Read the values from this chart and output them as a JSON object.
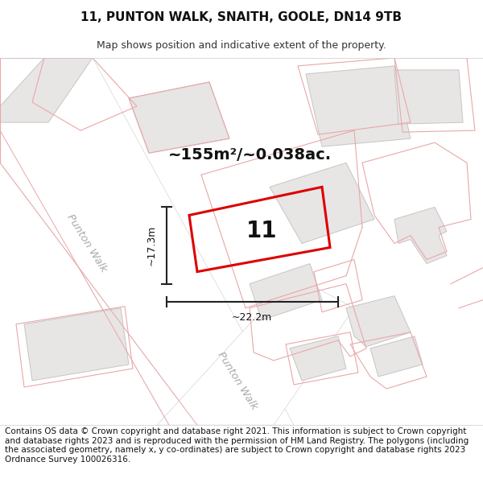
{
  "title": "11, PUNTON WALK, SNAITH, GOOLE, DN14 9TB",
  "subtitle": "Map shows position and indicative extent of the property.",
  "footer": "Contains OS data © Crown copyright and database right 2021. This information is subject to Crown copyright and database rights 2023 and is reproduced with the permission of HM Land Registry. The polygons (including the associated geometry, namely x, y co-ordinates) are subject to Crown copyright and database rights 2023 Ordnance Survey 100026316.",
  "area_label": "~155m²/~0.038ac.",
  "number_label": "11",
  "dim_h": "~17.3m",
  "dim_w": "~22.2m",
  "road_label_upper": "Punton Walk",
  "road_label_lower": "Punton Walk",
  "map_bg": "#f2f0f0",
  "road_color": "#ffffff",
  "building_fill": "#e8e5e5",
  "building_edge": "#c8c4c4",
  "pink_line": "#e8a8a8",
  "pink_fill_light": "#f5e8e8",
  "red_poly": "#dd0000",
  "dim_color": "#222222",
  "title_fontsize": 11,
  "subtitle_fontsize": 9,
  "footer_fontsize": 7.5,
  "area_fontsize": 14,
  "number_fontsize": 20,
  "dim_fontsize": 9
}
